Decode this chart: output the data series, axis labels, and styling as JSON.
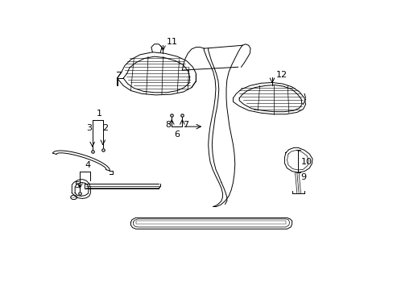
{
  "bg_color": "#ffffff",
  "line_color": "#000000",
  "fig_width": 4.89,
  "fig_height": 3.6,
  "dpi": 100,
  "font_size": 8
}
